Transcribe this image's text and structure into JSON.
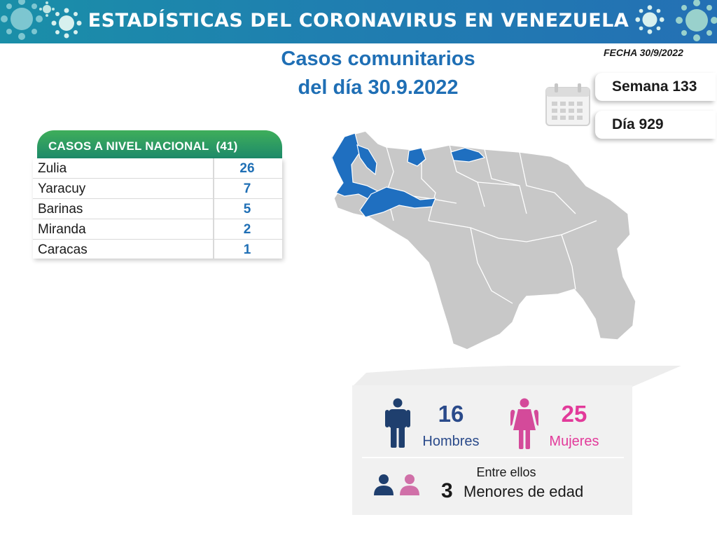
{
  "header": {
    "title": "ESTADÍSTICAS DEL CORONAVIRUS EN VENEZUELA",
    "subtitle_line1": "Casos comunitarios",
    "subtitle_line2": "del día 30.9.2022",
    "fecha": "FECHA 30/9/2022",
    "colors": {
      "banner": "#1f7fb0",
      "title_blue": "#1f6fb5"
    }
  },
  "calendar": {
    "week_label": "Semana 133",
    "day_label": "Día 929",
    "icon": "calendar-icon"
  },
  "national_table": {
    "header_label": "CASOS A NIVEL NACIONAL",
    "total": "(41)",
    "rows": [
      {
        "state": "Zulia",
        "count": "26"
      },
      {
        "state": "Yaracuy",
        "count": "7"
      },
      {
        "state": "Barinas",
        "count": "5"
      },
      {
        "state": "Miranda",
        "count": "2"
      },
      {
        "state": "Caracas",
        "count": "1"
      }
    ],
    "colors": {
      "header_green": "#2e9e62",
      "count_blue": "#1f6fb5"
    }
  },
  "map": {
    "highlighted_states": [
      "Zulia",
      "Yaracuy",
      "Barinas",
      "Miranda",
      "Caracas"
    ],
    "colors": {
      "highlight": "#1f6fc0",
      "base": "#c8c8c8",
      "border": "#ffffff"
    }
  },
  "demographics": {
    "men_count": "16",
    "men_label": "Hombres",
    "women_count": "25",
    "women_label": "Mujeres",
    "entre_label": "Entre ellos",
    "minors_count": "3",
    "minors_label": "Menores de edad",
    "colors": {
      "men": "#1f3f6e",
      "women": "#d44a9a"
    }
  }
}
